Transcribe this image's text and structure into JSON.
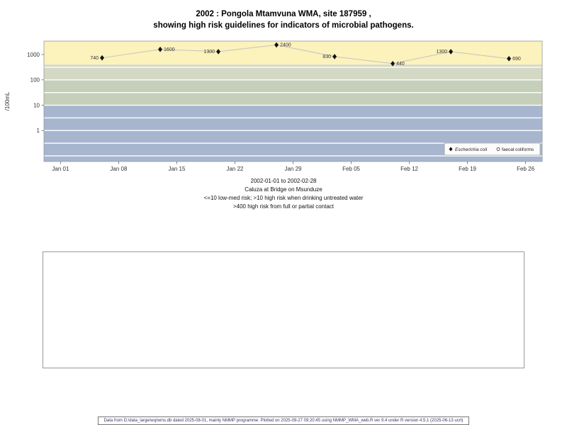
{
  "title": {
    "line1": "2002 : Pongola Mtamvuna WMA, site 187959 ,",
    "line2": "showing high risk guidelines for indicators of microbial pathogens."
  },
  "chart_data": {
    "type": "line",
    "ylabel": "/100mL",
    "y_scale": "log",
    "ylim": [
      0.06,
      3400
    ],
    "y_tick_values": [
      1000,
      100,
      10,
      1
    ],
    "y_tick_labels": [
      "1000",
      "100",
      "10",
      "1"
    ],
    "x_tick_labels": [
      "Jan 01",
      "Jan 08",
      "Jan 15",
      "Jan 22",
      "Jan 29",
      "Feb 05",
      "Feb 12",
      "Feb 19",
      "Feb 26"
    ],
    "x_tick_days": [
      1,
      8,
      15,
      22,
      29,
      36,
      43,
      50,
      57
    ],
    "xlim_days": [
      -1,
      59
    ],
    "grid": true,
    "gridline_values": [
      0.1,
      0.316,
      1,
      3.16,
      10,
      31.6,
      100,
      316
    ],
    "bands": [
      {
        "from": 400,
        "to": 3400,
        "color": "#FBF2BC"
      },
      {
        "from": 100,
        "to": 400,
        "color": "#D4D9C6"
      },
      {
        "from": 10,
        "to": 100,
        "color": "#C6CFB9"
      },
      {
        "from": 0.06,
        "to": 10,
        "color": "#A7B6CE"
      }
    ],
    "series": [
      {
        "name": "Escherichia coli",
        "marker": "diamond",
        "days": [
          6,
          13,
          20,
          27,
          34,
          41,
          48,
          55
        ],
        "values": [
          740,
          1600,
          1300,
          2400,
          830,
          440,
          1300,
          690
        ],
        "point_labels": [
          "740",
          "1600",
          "1300",
          "2400",
          "830",
          "440",
          "1300",
          "690"
        ]
      },
      {
        "name": "faecal coliforms",
        "marker": "circle",
        "days": [],
        "values": [],
        "point_labels": []
      }
    ],
    "legend": {
      "position": "bottom-right",
      "entries": [
        {
          "marker": "diamond",
          "label": "Escherichia coli"
        },
        {
          "marker": "circle",
          "label": "faecal coliforms"
        }
      ]
    },
    "colors": {
      "point": "#111111",
      "connector_line": "#c3c3c3",
      "gridline": "#ffffff",
      "axis_text": "#333333",
      "plot_border": "#999999"
    }
  },
  "captions": {
    "lines": [
      "2002-01-01 to 2002-02-28",
      "Caluza at Bridge on Msunduze",
      "<=10 low-med risk; >10 high risk when drinking untreated water",
      ">400 high risk from full or partial contact"
    ]
  },
  "footer": {
    "text": "Data from D:/data_large/wq/wms.db dated 2025-08-01, mainly NMMP programme. Plotted on 2025-09-27 09:20:45 using NMMP_WMA_web.R ver 9.4 under R version 4.5.1 (2025-06-13 ucrt)"
  }
}
